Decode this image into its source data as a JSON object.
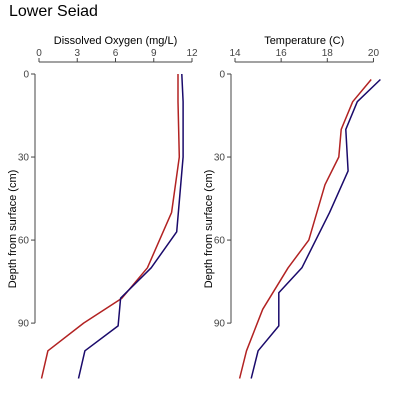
{
  "title": "Lower Seiad",
  "series_colors": {
    "red": "#b22222",
    "navy": "#1a0a6b"
  },
  "chart_data": [
    {
      "type": "line",
      "name": "dissolved-oxygen-profile",
      "xlabel": "Dissolved Oxygen (mg/L)",
      "ylabel": "Depth from surface (cm)",
      "x_axis_position": "top",
      "y_reversed": true,
      "xlim": [
        0,
        12
      ],
      "ylim": [
        0,
        112
      ],
      "xticks": [
        0,
        3,
        6,
        9,
        12
      ],
      "yticks": [
        0,
        30,
        60,
        90
      ],
      "series": [
        {
          "color": "#b22222",
          "points": [
            [
              10.9,
              0
            ],
            [
              10.9,
              10
            ],
            [
              11.0,
              30
            ],
            [
              10.4,
              50
            ],
            [
              8.5,
              70
            ],
            [
              6.5,
              81
            ],
            [
              3.5,
              90
            ],
            [
              0.7,
              100
            ],
            [
              0.2,
              110
            ]
          ]
        },
        {
          "color": "#1a0a6b",
          "points": [
            [
              11.2,
              0
            ],
            [
              11.3,
              10
            ],
            [
              11.3,
              30
            ],
            [
              10.8,
              57
            ],
            [
              8.8,
              70
            ],
            [
              6.4,
              81
            ],
            [
              6.2,
              91
            ],
            [
              3.6,
              100
            ],
            [
              3.1,
              110
            ]
          ]
        }
      ]
    },
    {
      "type": "line",
      "name": "temperature-profile",
      "xlabel": "Temperature (C)",
      "ylabel": "Depth from surface (cm)",
      "x_axis_position": "top",
      "y_reversed": true,
      "xlim": [
        14,
        20.5
      ],
      "ylim": [
        0,
        112
      ],
      "xticks": [
        14,
        16,
        18,
        20
      ],
      "yticks": [
        0,
        30,
        60,
        90
      ],
      "series": [
        {
          "color": "#b22222",
          "points": [
            [
              19.9,
              2
            ],
            [
              19.1,
              10
            ],
            [
              18.6,
              20
            ],
            [
              18.5,
              30
            ],
            [
              17.9,
              40
            ],
            [
              17.2,
              60
            ],
            [
              16.3,
              70
            ],
            [
              15.2,
              85
            ],
            [
              14.5,
              100
            ],
            [
              14.2,
              110
            ]
          ]
        },
        {
          "color": "#1a0a6b",
          "points": [
            [
              20.3,
              2
            ],
            [
              19.3,
              10
            ],
            [
              18.8,
              20
            ],
            [
              18.9,
              35
            ],
            [
              18.1,
              50
            ],
            [
              16.9,
              70
            ],
            [
              15.9,
              79
            ],
            [
              15.9,
              91
            ],
            [
              15.0,
              100
            ],
            [
              14.7,
              110
            ]
          ]
        }
      ]
    }
  ]
}
